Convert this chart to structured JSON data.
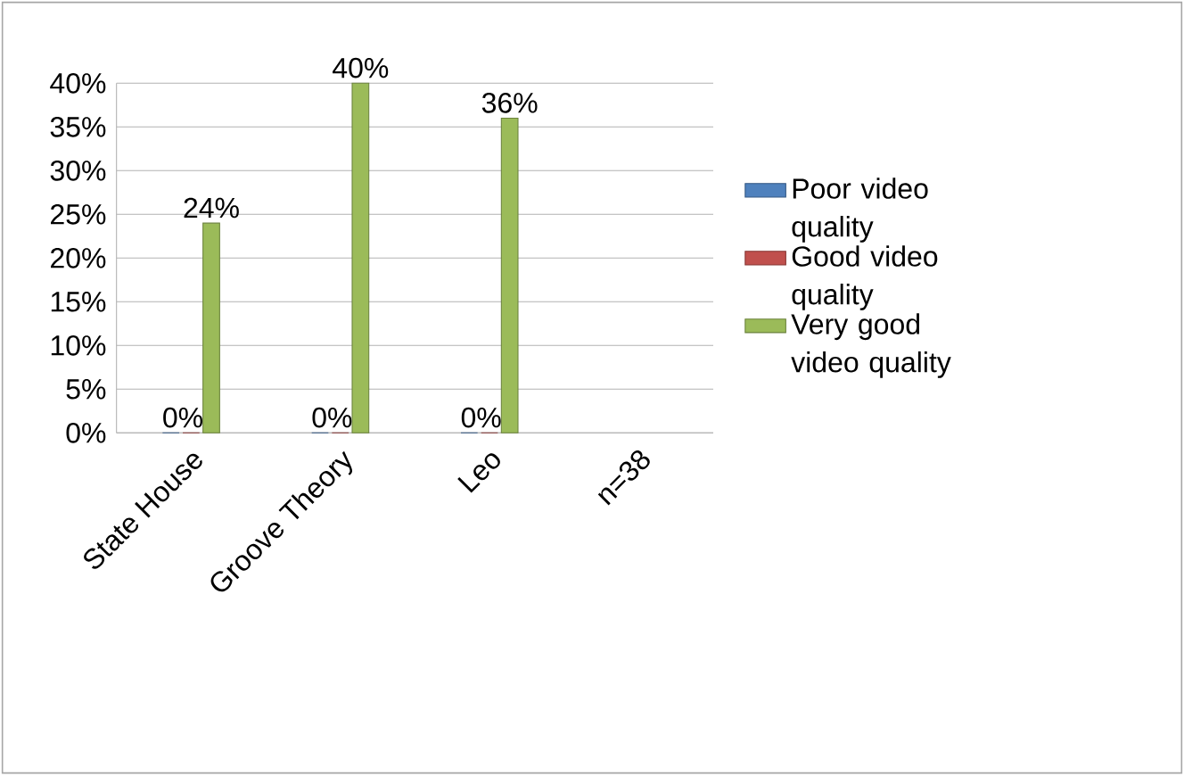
{
  "chart_data": {
    "type": "bar",
    "categories": [
      "State House",
      "Groove Theory",
      "Leo",
      "n=38"
    ],
    "series": [
      {
        "name": "Poor video quality",
        "color": "#4f81bd",
        "values": [
          0,
          0,
          0,
          null
        ],
        "value_labels": [
          "0%",
          "0%",
          "0%",
          null
        ]
      },
      {
        "name": "Good video quality",
        "color": "#c0504d",
        "values": [
          0,
          0,
          0,
          null
        ]
      },
      {
        "name": "Very good video quality",
        "color": "#9bbb59",
        "values": [
          24,
          40,
          36,
          null
        ],
        "value_labels": [
          "24%",
          "40%",
          "36%",
          null
        ]
      }
    ],
    "ylim": [
      0,
      40
    ],
    "yticks": [
      {
        "value": 0,
        "label": "0%"
      },
      {
        "value": 5,
        "label": "5%"
      },
      {
        "value": 10,
        "label": "10%"
      },
      {
        "value": 15,
        "label": "15%"
      },
      {
        "value": 20,
        "label": "20%"
      },
      {
        "value": 25,
        "label": "25%"
      },
      {
        "value": 30,
        "label": "30%"
      },
      {
        "value": 35,
        "label": "35%"
      },
      {
        "value": 40,
        "label": "40%"
      }
    ],
    "grid": "y",
    "legend": "right"
  }
}
